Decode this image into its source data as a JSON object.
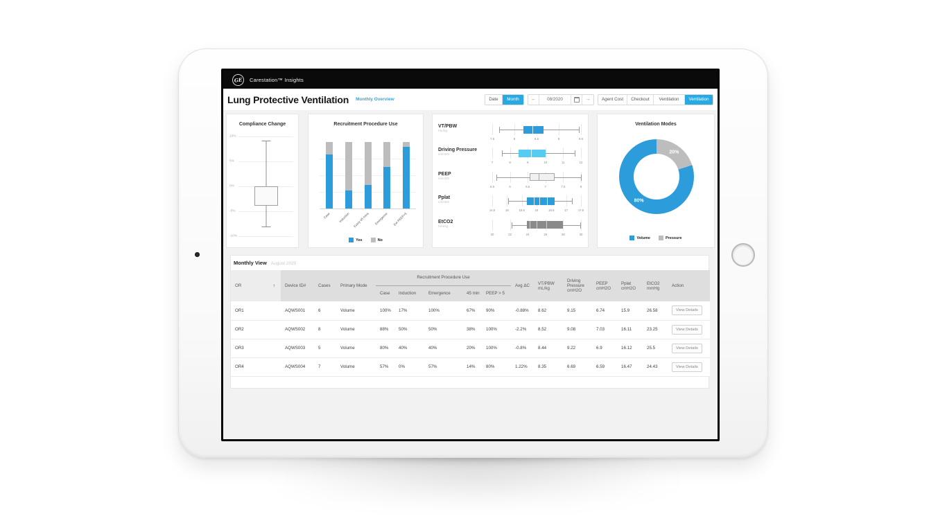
{
  "app": {
    "brand": "Carestation™ Insights",
    "logo_monogram": "GE"
  },
  "page": {
    "title": "Lung Protective Ventilation",
    "overview_link": "Monthly Overview"
  },
  "toolbar": {
    "date_button": "Date",
    "month_button": "Month",
    "prev_arrow": "←",
    "date_value": "08/2020",
    "next_arrow": "→",
    "nav_buttons": [
      {
        "label": "Agent Cost",
        "active": false
      },
      {
        "label": "Checkout",
        "active": false
      },
      {
        "label": "Ventilation",
        "active": false
      },
      {
        "label": "Ventilation",
        "active": true
      }
    ]
  },
  "colors": {
    "accent": "#29a9e2",
    "chart_blue": "#2d9cdb",
    "chart_cyan": "#56ccf2",
    "chart_gray": "#bdbdbd",
    "chart_darkgray": "#8a8a8a"
  },
  "chart_data": [
    {
      "type": "boxplot",
      "orientation": "vertical",
      "title": "Compliance Change",
      "ylim": [
        -10,
        10
      ],
      "yticks": [
        {
          "label": "10%",
          "value": 10
        },
        {
          "label": "5%",
          "value": 5
        },
        {
          "label": "0%",
          "value": 0
        },
        {
          "label": "-5%",
          "value": -5
        },
        {
          "label": "-10%",
          "value": -10
        }
      ],
      "box": {
        "min": -8,
        "q1": -3.9,
        "median": null,
        "q3": 0,
        "max": 9.2
      }
    },
    {
      "type": "bar",
      "stacked": true,
      "title": "Recruitment Procedure Use",
      "ylim": [
        0,
        100
      ],
      "categories": [
        "Case",
        "Induction",
        "Every 45 mins",
        "Emergence",
        "Ext PEEP>5"
      ],
      "series": [
        {
          "name": "Yes",
          "color": "#2d9cdb",
          "values": [
            81,
            27,
            35,
            62,
            93
          ]
        },
        {
          "name": "No",
          "color": "#bdbdbd",
          "values": [
            19,
            73,
            65,
            38,
            7
          ]
        }
      ],
      "legend_position": "bottom"
    },
    {
      "type": "boxplot-group",
      "orientation": "horizontal",
      "items": [
        {
          "label": "VT/PBW",
          "unit": "mL/kg",
          "color": "#2d9cdb",
          "med_color": "rgba(255,255,255,.8)",
          "axis": [
            7.5,
            9.5
          ],
          "ticks": [
            "7.5",
            "8",
            "8.5",
            "9",
            "9.5"
          ],
          "min": 7.65,
          "q1": 8.2,
          "median": 8.4,
          "q3": 8.65,
          "max": 9.45
        },
        {
          "label": "Driving Pressure",
          "unit": "cmH2O",
          "color": "#56ccf2",
          "med_color": "rgba(255,255,255,.8)",
          "axis": [
            7,
            12
          ],
          "ticks": [
            "7",
            "8",
            "9",
            "10",
            "11",
            "12"
          ],
          "min": 7.55,
          "q1": 8.5,
          "median": 9.2,
          "q3": 10,
          "max": 11.65
        },
        {
          "label": "PEEP",
          "unit": "cmH2O",
          "color": "#f1f1f1",
          "border": "#a5a5a5",
          "med_color": "#a5a5a5",
          "axis": [
            5.5,
            8
          ],
          "ticks": [
            "5.5",
            "6",
            "6.5",
            "7",
            "7.5",
            "8"
          ],
          "min": 5.62,
          "q1": 6.55,
          "median": 6.8,
          "q3": 7.25,
          "max": 8.0
        },
        {
          "label": "Pplat",
          "unit": "cmH2O",
          "color": "#2d9cdb",
          "med_color": "rgba(255,255,255,.8)",
          "axis": [
            14.5,
            17.5
          ],
          "ticks": [
            "14.5",
            "15",
            "15.5",
            "16",
            "16.5",
            "17",
            "17.5"
          ],
          "min": 15.05,
          "q1": 15.68,
          "median": 15.9,
          "q3": 16.6,
          "max": 17.2,
          "dividers": [
            16.1,
            16.35
          ]
        },
        {
          "label": "EtCO2",
          "unit": "mmHg",
          "color": "#8a8a8a",
          "med_color": "rgba(255,255,255,.6)",
          "axis": [
            20,
            30
          ],
          "ticks": [
            "20",
            "22",
            "24",
            "26",
            "28",
            "30"
          ],
          "min": 22.2,
          "q1": 23.9,
          "median": 25.0,
          "q3": 28.0,
          "max": 29.9,
          "dividers": [
            24.2,
            26.1
          ]
        }
      ]
    },
    {
      "type": "pie",
      "donut": true,
      "title": "Ventilation Modes",
      "slices": [
        {
          "label": "Volume",
          "value": 80,
          "display": "80%",
          "color": "#2d9cdb"
        },
        {
          "label": "Pressure",
          "value": 20,
          "display": "20%",
          "color": "#bdbdbd"
        }
      ],
      "legend_position": "bottom"
    }
  ],
  "monthly_view": {
    "title": "Monthly View",
    "subtitle": "August 2020",
    "sort_icon": "↑",
    "header": {
      "or": "OR",
      "device_id": "Device ID#",
      "cases": "Cases",
      "primary_mode": "Primary Mode",
      "group_label": "Recruitment Procedure Use",
      "sub_columns": [
        "Case",
        "Induction",
        "Emergence",
        "45 min",
        "PEEP > 5"
      ],
      "avg_dc": "Avg ΔC",
      "vt_pbw": {
        "label": "VT/PBW",
        "unit": "mL/kg"
      },
      "driving_pressure": {
        "label": "Driving Pressure",
        "unit": "cmH2O"
      },
      "peep": {
        "label": "PEEP",
        "unit": "cmH2O"
      },
      "pplat": {
        "label": "Pplat",
        "unit": "cmH2O"
      },
      "etco2": {
        "label": "EtCO2",
        "unit": "mmHg"
      },
      "action": "Action"
    },
    "rows": [
      {
        "cells": [
          "OR1",
          "AQWS001",
          "6",
          "Volume",
          "100%",
          "17%",
          "100%",
          "67%",
          "90%",
          "-0.88%",
          "8.62",
          "9.15",
          "6.74",
          "15.9",
          "26.58"
        ],
        "action": "View Details"
      },
      {
        "cells": [
          "OR2",
          "AQWS002",
          "8",
          "Volume",
          "88%",
          "50%",
          "50%",
          "38%",
          "100%",
          "-2.2%",
          "8.52",
          "9.08",
          "7.03",
          "16.11",
          "23.25"
        ],
        "action": "View Details"
      },
      {
        "cells": [
          "OR3",
          "AQWS003",
          "5",
          "Volume",
          "80%",
          "40%",
          "40%",
          "20%",
          "100%",
          "-0.8%",
          "8.44",
          "9.22",
          "6.9",
          "16.12",
          "25.5"
        ],
        "action": "View Details"
      },
      {
        "cells": [
          "OR4",
          "AQWS004",
          "7",
          "Volume",
          "57%",
          "0%",
          "57%",
          "14%",
          "80%",
          "1.22%",
          "8.35",
          "6.69",
          "6.59",
          "16.47",
          "24.43"
        ],
        "action": "View Details"
      }
    ]
  }
}
